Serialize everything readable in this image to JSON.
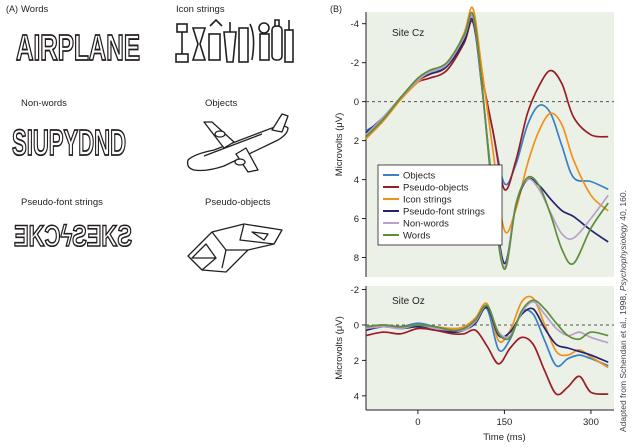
{
  "panel_a": {
    "label": "(A)",
    "stimuli": [
      {
        "label": "Words",
        "sample": "AIRPLANE",
        "icon": "outlined-letters"
      },
      {
        "label": "Icon strings",
        "icon": "icon-string-drawing"
      },
      {
        "label": "Non-words",
        "sample": "SIUPYDND",
        "icon": "outlined-letters"
      },
      {
        "label": "Objects",
        "icon": "airplane-drawing"
      },
      {
        "label": "Pseudo-font strings",
        "sample": "ƎKϽϟƧƎKƧ",
        "icon": "pseudo-font-glyphs"
      },
      {
        "label": "Pseudo-objects",
        "icon": "pseudo-object-drawing"
      }
    ]
  },
  "panel_b": {
    "label": "(B)"
  },
  "credit": {
    "prefix": "Adapted from Schendan et al., 1998,",
    "journal": "Psychophysiology",
    "suffix": " 40, 160."
  },
  "chart_data": [
    {
      "type": "line",
      "title": "Site Cz",
      "xlabel": "",
      "ylabel": "Microvolts (μV)",
      "xlim": [
        -90,
        340
      ],
      "ylim": [
        9,
        -4.6
      ],
      "y_inverted": true,
      "yticks": [
        -4,
        -2,
        0,
        2,
        4,
        6,
        8
      ],
      "grid": false,
      "baseline_dashed": 0,
      "legend": "lower-left",
      "series": [
        {
          "name": "Objects",
          "color": "#3b7fc4",
          "x": [
            -90,
            -60,
            -30,
            0,
            20,
            50,
            80,
            95,
            110,
            130,
            150,
            170,
            190,
            210,
            230,
            250,
            270,
            300,
            330
          ],
          "y": [
            1.5,
            0.9,
            -0.2,
            -1.2,
            -1.5,
            -1.9,
            -3.2,
            -4.4,
            -1.5,
            1.5,
            4.2,
            3.2,
            1.2,
            0.2,
            0.6,
            2.3,
            3.9,
            4.1,
            4.5
          ]
        },
        {
          "name": "Pseudo-objects",
          "color": "#9b1c24",
          "x": [
            -90,
            -60,
            -30,
            0,
            20,
            50,
            80,
            95,
            110,
            130,
            150,
            170,
            190,
            210,
            230,
            250,
            270,
            300,
            330
          ],
          "y": [
            1.7,
            0.9,
            -0.2,
            -1.0,
            -1.2,
            -1.6,
            -3.0,
            -4.1,
            -1.5,
            1.5,
            4.5,
            3.0,
            0.6,
            -0.8,
            -1.6,
            -0.9,
            0.8,
            1.7,
            1.8
          ]
        },
        {
          "name": "Icon strings",
          "color": "#f0901d",
          "x": [
            -90,
            -60,
            -30,
            0,
            20,
            50,
            80,
            95,
            110,
            130,
            150,
            170,
            190,
            210,
            230,
            250,
            270,
            300,
            330
          ],
          "y": [
            1.9,
            1.0,
            -0.1,
            -1.0,
            -1.4,
            -1.8,
            -3.5,
            -4.8,
            -1.9,
            2.5,
            6.6,
            5.5,
            3.2,
            1.5,
            0.6,
            1.2,
            3.0,
            4.8,
            5.6
          ]
        },
        {
          "name": "Pseudo-font strings",
          "color": "#24246e",
          "x": [
            -90,
            -60,
            -30,
            0,
            20,
            50,
            80,
            95,
            110,
            130,
            150,
            170,
            190,
            210,
            230,
            250,
            270,
            300,
            330
          ],
          "y": [
            1.6,
            0.8,
            -0.2,
            -1.1,
            -1.4,
            -1.8,
            -3.1,
            -4.2,
            -1.0,
            4.5,
            8.3,
            5.3,
            4.0,
            4.3,
            5.0,
            5.6,
            5.9,
            6.6,
            7.2
          ]
        },
        {
          "name": "Non-words",
          "color": "#b8a0cc",
          "x": [
            -90,
            -60,
            -30,
            0,
            20,
            50,
            80,
            95,
            110,
            130,
            150,
            170,
            190,
            210,
            230,
            250,
            270,
            300,
            330
          ],
          "y": [
            1.7,
            0.8,
            -0.2,
            -1.1,
            -1.5,
            -1.9,
            -3.3,
            -4.4,
            -1.1,
            4.7,
            8.5,
            5.2,
            4.0,
            4.5,
            5.7,
            6.8,
            7.0,
            6.0,
            4.8
          ]
        },
        {
          "name": "Words",
          "color": "#5d8f3b",
          "x": [
            -90,
            -60,
            -30,
            0,
            20,
            50,
            80,
            95,
            110,
            130,
            150,
            170,
            190,
            210,
            230,
            250,
            270,
            300,
            330
          ],
          "y": [
            1.8,
            0.9,
            -0.2,
            -1.2,
            -1.6,
            -2.0,
            -3.4,
            -4.5,
            -1.2,
            4.9,
            8.6,
            5.3,
            3.9,
            4.3,
            5.8,
            7.6,
            8.3,
            6.5,
            5.2
          ]
        }
      ]
    },
    {
      "type": "line",
      "title": "Site Oz",
      "xlabel": "Time (ms)",
      "ylabel": "Microvolts (μV)",
      "xlim": [
        -90,
        340
      ],
      "ylim": [
        4.8,
        -2.2
      ],
      "y_inverted": true,
      "yticks": [
        -2,
        0,
        2,
        4
      ],
      "xticks": [
        0,
        150,
        300
      ],
      "grid": false,
      "baseline_dashed": 0,
      "series": [
        {
          "name": "Objects",
          "color": "#3b7fc4",
          "x": [
            -90,
            -60,
            -30,
            0,
            30,
            60,
            80,
            100,
            120,
            140,
            160,
            180,
            200,
            220,
            240,
            260,
            280,
            300,
            330
          ],
          "y": [
            0.2,
            0.0,
            0.1,
            -0.1,
            0.1,
            0.3,
            0.2,
            -0.2,
            -0.9,
            1.4,
            0.8,
            -0.7,
            -0.6,
            0.9,
            2.3,
            1.9,
            1.7,
            1.9,
            2.3
          ]
        },
        {
          "name": "Pseudo-objects",
          "color": "#9b1c24",
          "x": [
            -90,
            -60,
            -30,
            0,
            30,
            60,
            80,
            100,
            120,
            140,
            160,
            180,
            200,
            220,
            240,
            260,
            280,
            300,
            330
          ],
          "y": [
            0.6,
            0.4,
            0.5,
            0.2,
            0.3,
            0.5,
            0.5,
            0.3,
            1.2,
            2.2,
            1.3,
            0.7,
            1.1,
            2.6,
            3.9,
            3.5,
            2.9,
            3.8,
            3.9
          ]
        },
        {
          "name": "Icon strings",
          "color": "#f0901d",
          "x": [
            -90,
            -60,
            -30,
            0,
            30,
            60,
            80,
            100,
            120,
            140,
            160,
            180,
            200,
            220,
            240,
            260,
            280,
            300,
            330
          ],
          "y": [
            0.1,
            0.0,
            0.1,
            0.0,
            0.1,
            0.2,
            0.1,
            -0.4,
            -1.2,
            0.9,
            0.3,
            -1.3,
            -1.5,
            0.0,
            1.5,
            1.7,
            1.4,
            1.8,
            2.4
          ]
        },
        {
          "name": "Pseudo-font strings",
          "color": "#24246e",
          "x": [
            -90,
            -60,
            -30,
            0,
            30,
            60,
            80,
            100,
            120,
            140,
            160,
            180,
            200,
            220,
            240,
            260,
            280,
            300,
            330
          ],
          "y": [
            0.3,
            0.1,
            0.2,
            0.1,
            0.2,
            0.4,
            0.3,
            -0.1,
            -1.0,
            0.6,
            0.4,
            -0.6,
            -0.9,
            0.2,
            1.1,
            1.3,
            1.5,
            1.7,
            2.1
          ]
        },
        {
          "name": "Non-words",
          "color": "#b8a0cc",
          "x": [
            -90,
            -60,
            -30,
            0,
            30,
            60,
            80,
            100,
            120,
            140,
            160,
            180,
            200,
            220,
            240,
            260,
            280,
            300,
            330
          ],
          "y": [
            0.2,
            0.1,
            0.2,
            0.0,
            0.2,
            0.3,
            0.3,
            -0.2,
            -1.1,
            0.4,
            0.6,
            -0.7,
            -1.3,
            -0.6,
            0.2,
            0.6,
            0.4,
            0.7,
            1.0
          ]
        },
        {
          "name": "Words",
          "color": "#5d8f3b",
          "x": [
            -90,
            -60,
            -30,
            0,
            30,
            60,
            80,
            100,
            120,
            140,
            160,
            180,
            200,
            220,
            240,
            260,
            280,
            300,
            330
          ],
          "y": [
            0.1,
            0.0,
            0.1,
            0.0,
            0.1,
            0.3,
            0.2,
            -0.3,
            -1.1,
            0.5,
            0.7,
            -0.8,
            -1.4,
            -0.9,
            -0.1,
            0.6,
            0.8,
            0.4,
            0.6
          ]
        }
      ]
    }
  ]
}
